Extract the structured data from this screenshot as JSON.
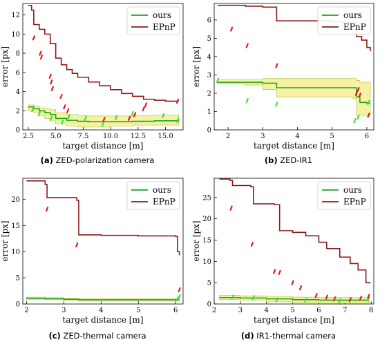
{
  "colors": {
    "ours": "#1aa81a",
    "epnp": "#8b1a1a",
    "band": "#f4f29a",
    "band_edge": "#b9b93a",
    "pts_ours": "#39e039",
    "pts_epnp": "#e01818"
  },
  "chart_data": [
    {
      "type": "line",
      "panel": "a",
      "caption_label": "(a)",
      "caption_text": "ZED-polarization camera",
      "xlabel": "target distance [m]",
      "ylabel": "error [px]",
      "xlim": [
        2.0,
        16.6
      ],
      "ylim": [
        0,
        13.2
      ],
      "xticks": [
        2.5,
        5.0,
        7.5,
        10.0,
        12.5,
        15.0
      ],
      "xtick_labels": [
        "2.5",
        "5.0",
        "7.5",
        "10.0",
        "12.5",
        "15.0"
      ],
      "yticks": [
        0,
        2,
        4,
        6,
        8,
        10,
        12
      ],
      "legend": {
        "position": "top-right",
        "entries": [
          "ours",
          "EPnP"
        ]
      },
      "series": [
        {
          "name": "ours",
          "x": [
            2.5,
            3.0,
            3.5,
            4.0,
            4.5,
            5.0,
            6.0,
            7.0,
            8.0,
            10.0,
            12.0,
            14.0,
            16.2
          ],
          "y": [
            2.4,
            2.2,
            2.0,
            1.8,
            1.6,
            1.2,
            1.0,
            0.9,
            0.85,
            0.85,
            0.9,
            0.95,
            1.0
          ],
          "band_low": [
            2.0,
            1.8,
            1.5,
            1.2,
            1.0,
            0.6,
            0.4,
            0.3,
            0.3,
            0.4,
            0.5,
            0.5,
            0.5
          ],
          "band_high": [
            2.6,
            2.5,
            2.3,
            2.2,
            2.1,
            1.8,
            1.6,
            1.5,
            1.45,
            1.45,
            1.5,
            1.55,
            1.6
          ]
        },
        {
          "name": "EPnP",
          "x": [
            2.5,
            2.8,
            3.0,
            3.5,
            4.0,
            4.5,
            5.0,
            5.5,
            6.0,
            6.5,
            7.0,
            8.0,
            9.0,
            10.0,
            11.0,
            12.0,
            13.0,
            14.0,
            15.0,
            16.2
          ],
          "y": [
            13.0,
            12.5,
            11.0,
            10.5,
            10.0,
            9.0,
            7.5,
            6.8,
            6.3,
            5.9,
            5.5,
            5.0,
            4.6,
            4.2,
            3.8,
            3.5,
            3.2,
            3.1,
            3.0,
            3.0
          ]
        }
      ],
      "outliers_epnp": [
        [
          3.0,
          9.6
        ],
        [
          3.6,
          8.0
        ],
        [
          3.7,
          7.6
        ],
        [
          4.5,
          5.6
        ],
        [
          4.6,
          5.0
        ],
        [
          4.7,
          4.3
        ],
        [
          5.5,
          3.5
        ],
        [
          5.8,
          2.4
        ],
        [
          6.1,
          2.0
        ],
        [
          9.4,
          1.1
        ],
        [
          11.7,
          1.2
        ],
        [
          12.2,
          1.6
        ],
        [
          13.0,
          2.2
        ],
        [
          13.2,
          2.6
        ],
        [
          16.1,
          3.0
        ]
      ],
      "outliers_ours": [
        [
          2.9,
          2.1
        ],
        [
          3.5,
          1.7
        ],
        [
          4.6,
          1.2
        ],
        [
          5.6,
          0.8
        ],
        [
          6.2,
          1.4
        ],
        [
          7.7,
          1.2
        ],
        [
          9.3,
          0.6
        ],
        [
          10.5,
          1.3
        ],
        [
          12.0,
          1.7
        ],
        [
          14.8,
          1.5
        ],
        [
          16.1,
          1.0
        ]
      ]
    },
    {
      "type": "line",
      "panel": "b",
      "caption_label": "(b)",
      "caption_text": "ZED-IR1",
      "xlabel": "target distance [m]",
      "ylabel": "error [px]",
      "xlim": [
        1.6,
        6.2
      ],
      "ylim": [
        0,
        6.9
      ],
      "xticks": [
        2,
        3,
        4,
        5,
        6
      ],
      "xtick_labels": [
        "2",
        "3",
        "4",
        "5",
        "6"
      ],
      "yticks": [
        0,
        1,
        2,
        3,
        4,
        5,
        6
      ],
      "legend": {
        "position": "top-right",
        "entries": [
          "ours",
          "EPnP"
        ]
      },
      "series": [
        {
          "name": "ours",
          "x": [
            1.7,
            2.0,
            2.5,
            3.0,
            3.4,
            4.0,
            5.0,
            5.6,
            5.7,
            5.8,
            6.0,
            6.1
          ],
          "y": [
            2.6,
            2.6,
            2.6,
            2.55,
            2.3,
            2.3,
            2.3,
            2.3,
            1.8,
            1.5,
            1.45,
            1.45
          ],
          "band_low": [
            2.5,
            2.5,
            2.45,
            2.2,
            1.8,
            1.8,
            1.8,
            1.7,
            0.8,
            0.8,
            0.8,
            0.8
          ],
          "band_high": [
            2.75,
            2.75,
            2.75,
            2.8,
            2.8,
            2.8,
            2.8,
            2.8,
            2.7,
            2.6,
            2.6,
            2.6
          ]
        },
        {
          "name": "EPnP",
          "x": [
            1.7,
            2.0,
            2.5,
            3.0,
            3.4,
            4.0,
            5.0,
            5.5,
            5.7,
            5.85,
            6.0,
            6.1
          ],
          "y": [
            6.8,
            6.8,
            6.75,
            6.7,
            5.95,
            5.95,
            5.9,
            5.85,
            5.1,
            4.9,
            4.5,
            4.3
          ]
        }
      ],
      "outliers_epnp": [
        [
          2.1,
          5.5
        ],
        [
          2.55,
          4.6
        ],
        [
          3.4,
          3.5
        ],
        [
          5.7,
          2.0
        ],
        [
          5.75,
          2.2
        ],
        [
          5.8,
          1.9
        ],
        [
          6.05,
          0.8
        ]
      ],
      "outliers_ours": [
        [
          1.7,
          2.7
        ],
        [
          2.55,
          1.6
        ],
        [
          3.4,
          1.4
        ],
        [
          5.65,
          0.5
        ],
        [
          5.75,
          0.7
        ],
        [
          6.05,
          1.5
        ]
      ]
    },
    {
      "type": "line",
      "panel": "c",
      "caption_label": "(c)",
      "caption_text": "ZED-thermal camera",
      "xlabel": "target distance [m]",
      "ylabel": "error [px]",
      "xlim": [
        1.9,
        6.2
      ],
      "ylim": [
        0,
        24.0
      ],
      "xticks": [
        2,
        3,
        4,
        5,
        6
      ],
      "xtick_labels": [
        "2",
        "3",
        "4",
        "5",
        "6"
      ],
      "yticks": [
        0,
        5,
        10,
        15,
        20
      ],
      "legend": {
        "position": "top-right",
        "entries": [
          "ours",
          "EPnP"
        ]
      },
      "series": [
        {
          "name": "ours",
          "x": [
            2.0,
            2.5,
            3.0,
            3.4,
            4.0,
            5.0,
            6.0,
            6.1
          ],
          "y": [
            1.1,
            1.0,
            0.9,
            0.8,
            0.8,
            0.8,
            0.8,
            0.8
          ],
          "band_low": [
            0.9,
            0.8,
            0.7,
            0.6,
            0.6,
            0.6,
            0.6,
            0.6
          ],
          "band_high": [
            1.3,
            1.2,
            1.1,
            1.0,
            1.0,
            1.0,
            1.0,
            1.0
          ]
        },
        {
          "name": "EPnP",
          "x": [
            2.0,
            2.5,
            2.55,
            3.35,
            3.4,
            4.0,
            5.0,
            6.0,
            6.05,
            6.1
          ],
          "y": [
            23.5,
            22.8,
            20.3,
            19.8,
            13.2,
            13.1,
            13.0,
            12.9,
            10.0,
            9.3
          ]
        }
      ],
      "outliers_epnp": [
        [
          2.55,
          18.1
        ],
        [
          3.35,
          11.3
        ],
        [
          6.1,
          2.7
        ]
      ],
      "outliers_ours": [
        [
          6.1,
          1.4
        ],
        [
          6.05,
          1.0
        ]
      ]
    },
    {
      "type": "line",
      "panel": "d",
      "caption_label": "(d)",
      "caption_text": "IR1-thermal camera",
      "xlabel": "target distance [m]",
      "ylabel": "error [px]",
      "xlim": [
        2.0,
        8.1
      ],
      "ylim": [
        0,
        29.5
      ],
      "xticks": [
        2,
        3,
        4,
        5,
        6,
        7,
        8
      ],
      "xtick_labels": [
        "2",
        "3",
        "4",
        "5",
        "6",
        "7",
        "8"
      ],
      "yticks": [
        0,
        5,
        10,
        15,
        20,
        25
      ],
      "legend": {
        "position": "top-right",
        "entries": [
          "ours",
          "EPnP"
        ]
      },
      "series": [
        {
          "name": "ours",
          "x": [
            2.2,
            3.0,
            4.0,
            5.0,
            6.0,
            7.0,
            7.9
          ],
          "y": [
            1.5,
            1.4,
            1.2,
            1.0,
            0.9,
            0.9,
            1.0
          ],
          "band_low": [
            1.0,
            0.9,
            0.5,
            0.3,
            0.2,
            0.2,
            0.3
          ],
          "band_high": [
            2.0,
            1.9,
            1.8,
            1.6,
            1.5,
            1.5,
            1.6
          ]
        },
        {
          "name": "EPnP",
          "x": [
            2.2,
            2.6,
            2.7,
            3.4,
            3.5,
            4.3,
            4.5,
            5.0,
            5.5,
            6.0,
            6.3,
            6.8,
            7.2,
            7.5,
            7.8,
            7.95
          ],
          "y": [
            29.3,
            29.0,
            27.8,
            27.5,
            23.5,
            23.3,
            17.2,
            16.8,
            16.0,
            14.5,
            13.0,
            11.0,
            9.5,
            8.0,
            5.0,
            4.8
          ]
        }
      ],
      "outliers_epnp": [
        [
          2.65,
          22.5
        ],
        [
          3.45,
          14.0
        ],
        [
          4.3,
          7.6
        ],
        [
          4.5,
          7.4
        ],
        [
          5.0,
          5.0
        ],
        [
          5.3,
          3.8
        ],
        [
          5.9,
          2.0
        ],
        [
          6.3,
          1.6
        ],
        [
          6.6,
          1.2
        ],
        [
          7.2,
          1.0
        ],
        [
          7.6,
          1.4
        ],
        [
          7.9,
          1.8
        ]
      ],
      "outliers_ours": [
        [
          2.7,
          1.6
        ],
        [
          3.5,
          1.5
        ],
        [
          4.4,
          1.0
        ],
        [
          5.5,
          0.9
        ],
        [
          6.8,
          0.7
        ],
        [
          7.9,
          1.2
        ]
      ]
    }
  ]
}
